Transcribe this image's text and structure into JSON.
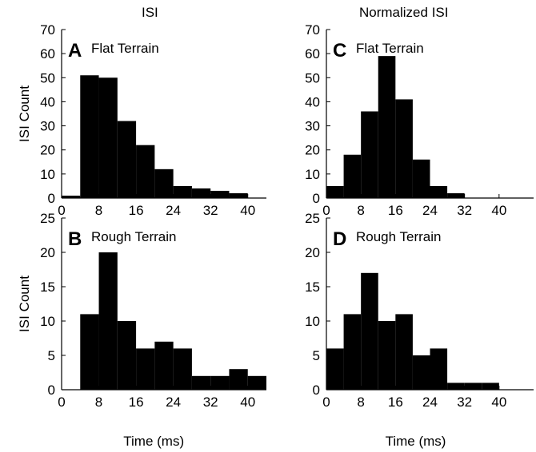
{
  "column_titles": {
    "left": "ISI",
    "right": "Normalized ISI"
  },
  "chart_data": [
    {
      "id": "A",
      "type": "bar",
      "panel_label": "A",
      "title": "Flat Terrain",
      "xlabel": "",
      "ylabel": "ISI Count",
      "xlim": [
        0,
        44
      ],
      "ylim": [
        0,
        70
      ],
      "xticks": [
        0,
        8,
        16,
        24,
        32,
        40
      ],
      "yticks": [
        0,
        10,
        20,
        30,
        40,
        50,
        60,
        70
      ],
      "bin_edges": [
        0,
        4,
        8,
        12,
        16,
        20,
        24,
        28,
        32,
        36,
        40
      ],
      "values": [
        1,
        51,
        50,
        32,
        22,
        12,
        5,
        4,
        3,
        2
      ]
    },
    {
      "id": "C",
      "type": "bar",
      "panel_label": "C",
      "title": "Flat Terrain",
      "xlabel": "",
      "ylabel": "",
      "xlim": [
        0,
        48
      ],
      "ylim": [
        0,
        70
      ],
      "xticks": [
        0,
        8,
        16,
        24,
        32,
        40
      ],
      "yticks": [
        0,
        10,
        20,
        30,
        40,
        50,
        60,
        70
      ],
      "bin_edges": [
        0,
        4,
        8,
        12,
        16,
        20,
        24,
        28,
        32
      ],
      "values": [
        5,
        18,
        36,
        59,
        41,
        16,
        5,
        2
      ]
    },
    {
      "id": "B",
      "type": "bar",
      "panel_label": "B",
      "title": "Rough Terrain",
      "xlabel": "Time (ms)",
      "ylabel": "ISI Count",
      "xlim": [
        0,
        44
      ],
      "ylim": [
        0,
        25
      ],
      "xticks": [
        0,
        8,
        16,
        24,
        32,
        40
      ],
      "yticks": [
        0,
        5,
        10,
        15,
        20,
        25
      ],
      "bin_edges": [
        4,
        8,
        12,
        16,
        20,
        24,
        28,
        32,
        36,
        40,
        44
      ],
      "values": [
        11,
        20,
        10,
        6,
        7,
        6,
        2,
        2,
        3,
        2
      ]
    },
    {
      "id": "D",
      "type": "bar",
      "panel_label": "D",
      "title": "Rough Terrain",
      "xlabel": "Time (ms)",
      "ylabel": "",
      "xlim": [
        0,
        48
      ],
      "ylim": [
        0,
        25
      ],
      "xticks": [
        0,
        8,
        16,
        24,
        32,
        40
      ],
      "yticks": [
        0,
        5,
        10,
        15,
        20,
        25
      ],
      "bin_edges": [
        0,
        4,
        8,
        12,
        16,
        20,
        24,
        28,
        32,
        36,
        40
      ],
      "values": [
        6,
        11,
        17,
        10,
        11,
        5,
        6,
        1,
        1,
        1
      ]
    }
  ]
}
